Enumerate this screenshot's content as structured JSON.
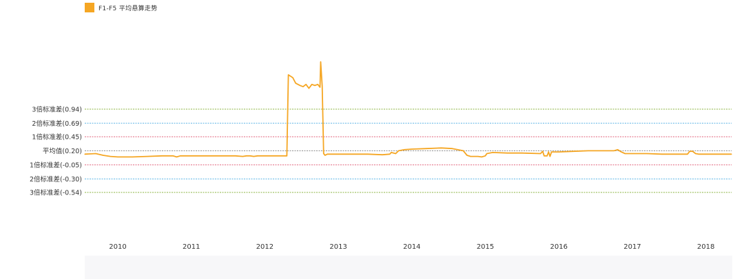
{
  "legend": {
    "label": "F1-F5 平均悬算走势",
    "color": "#f5a623"
  },
  "chart_data": {
    "type": "line",
    "title": "",
    "xlabel": "",
    "ylabel": "",
    "xlim": [
      2009.55,
      2018.35
    ],
    "ylim": [
      -1.15,
      2.0
    ],
    "grid": false,
    "legend_position": "top-left",
    "x_ticks": [
      {
        "value": 2010,
        "label": "2010"
      },
      {
        "value": 2011,
        "label": "2011"
      },
      {
        "value": 2012,
        "label": "2012"
      },
      {
        "value": 2013,
        "label": "2013"
      },
      {
        "value": 2014,
        "label": "2014"
      },
      {
        "value": 2015,
        "label": "2015"
      },
      {
        "value": 2016,
        "label": "2016"
      },
      {
        "value": 2017,
        "label": "2017"
      },
      {
        "value": 2018,
        "label": "2018"
      }
    ],
    "reference_lines": [
      {
        "value": 0.94,
        "label": "3倍标准差(0.94)",
        "color": "#8ab33f"
      },
      {
        "value": 0.69,
        "label": "2倍标准差(0.69)",
        "color": "#5ab4e5"
      },
      {
        "value": 0.45,
        "label": "1倍标准差(0.45)",
        "color": "#e0607a"
      },
      {
        "value": 0.2,
        "label": "平均值(0.20)",
        "color": "#888888"
      },
      {
        "value": -0.05,
        "label": "1倍标准差(-0.05)",
        "color": "#e0607a"
      },
      {
        "value": -0.3,
        "label": "2倍标准差(-0.30)",
        "color": "#5ab4e5"
      },
      {
        "value": -0.54,
        "label": "3倍标准差(-0.54)",
        "color": "#8ab33f"
      }
    ],
    "series": [
      {
        "color": "#f5a623",
        "points": [
          [
            2009.55,
            0.14
          ],
          [
            2009.7,
            0.15
          ],
          [
            2009.8,
            0.12
          ],
          [
            2009.9,
            0.1
          ],
          [
            2010.0,
            0.09
          ],
          [
            2010.2,
            0.09
          ],
          [
            2010.4,
            0.1
          ],
          [
            2010.6,
            0.11
          ],
          [
            2010.75,
            0.11
          ],
          [
            2010.8,
            0.09
          ],
          [
            2010.85,
            0.11
          ],
          [
            2011.0,
            0.11
          ],
          [
            2011.2,
            0.11
          ],
          [
            2011.4,
            0.11
          ],
          [
            2011.6,
            0.11
          ],
          [
            2011.7,
            0.1
          ],
          [
            2011.75,
            0.11
          ],
          [
            2011.8,
            0.11
          ],
          [
            2011.85,
            0.1
          ],
          [
            2011.9,
            0.11
          ],
          [
            2012.0,
            0.11
          ],
          [
            2012.1,
            0.11
          ],
          [
            2012.2,
            0.11
          ],
          [
            2012.3,
            0.11
          ],
          [
            2012.32,
            1.55
          ],
          [
            2012.38,
            1.5
          ],
          [
            2012.42,
            1.4
          ],
          [
            2012.48,
            1.36
          ],
          [
            2012.52,
            1.34
          ],
          [
            2012.56,
            1.38
          ],
          [
            2012.6,
            1.31
          ],
          [
            2012.64,
            1.38
          ],
          [
            2012.68,
            1.36
          ],
          [
            2012.72,
            1.38
          ],
          [
            2012.75,
            1.33
          ],
          [
            2012.76,
            1.78
          ],
          [
            2012.78,
            1.35
          ],
          [
            2012.8,
            0.15
          ],
          [
            2012.82,
            0.12
          ],
          [
            2012.85,
            0.14
          ],
          [
            2013.0,
            0.14
          ],
          [
            2013.2,
            0.14
          ],
          [
            2013.4,
            0.14
          ],
          [
            2013.6,
            0.13
          ],
          [
            2013.7,
            0.14
          ],
          [
            2013.72,
            0.17
          ],
          [
            2013.78,
            0.15
          ],
          [
            2013.82,
            0.2
          ],
          [
            2013.9,
            0.22
          ],
          [
            2014.0,
            0.23
          ],
          [
            2014.2,
            0.24
          ],
          [
            2014.4,
            0.25
          ],
          [
            2014.55,
            0.24
          ],
          [
            2014.7,
            0.2
          ],
          [
            2014.75,
            0.12
          ],
          [
            2014.8,
            0.1
          ],
          [
            2014.9,
            0.1
          ],
          [
            2014.95,
            0.09
          ],
          [
            2015.0,
            0.11
          ],
          [
            2015.02,
            0.15
          ],
          [
            2015.1,
            0.17
          ],
          [
            2015.3,
            0.16
          ],
          [
            2015.5,
            0.16
          ],
          [
            2015.75,
            0.15
          ],
          [
            2015.78,
            0.19
          ],
          [
            2015.8,
            0.11
          ],
          [
            2015.84,
            0.11
          ],
          [
            2015.86,
            0.18
          ],
          [
            2015.88,
            0.1
          ],
          [
            2015.9,
            0.18
          ],
          [
            2016.0,
            0.18
          ],
          [
            2016.2,
            0.19
          ],
          [
            2016.4,
            0.2
          ],
          [
            2016.6,
            0.2
          ],
          [
            2016.75,
            0.2
          ],
          [
            2016.8,
            0.22
          ],
          [
            2016.85,
            0.18
          ],
          [
            2016.9,
            0.15
          ],
          [
            2017.0,
            0.15
          ],
          [
            2017.2,
            0.15
          ],
          [
            2017.4,
            0.14
          ],
          [
            2017.6,
            0.14
          ],
          [
            2017.75,
            0.14
          ],
          [
            2017.78,
            0.19
          ],
          [
            2017.82,
            0.19
          ],
          [
            2017.86,
            0.15
          ],
          [
            2017.9,
            0.14
          ],
          [
            2018.0,
            0.14
          ],
          [
            2018.2,
            0.14
          ],
          [
            2018.35,
            0.14
          ]
        ]
      }
    ]
  }
}
